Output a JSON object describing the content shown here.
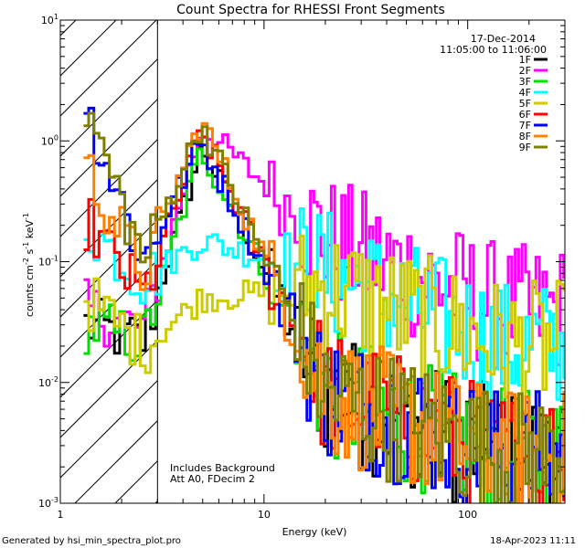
{
  "chart_data": {
    "type": "line",
    "title": "Count Spectra for RHESSI Front Segments",
    "xlabel": "Energy (keV)",
    "ylabel": "counts cm",
    "ylabel_sup1": "-2",
    "ylabel_mid": " s",
    "ylabel_sup2": "-1",
    "ylabel_end": " keV",
    "ylabel_sup3": "-1",
    "xscale": "log",
    "yscale": "log",
    "xlim": [
      1,
      300
    ],
    "ylim": [
      0.001,
      10
    ],
    "x_ticks": [
      {
        "value": 1,
        "label": "1"
      },
      {
        "value": 10,
        "label": "10"
      },
      {
        "value": 100,
        "label": "100"
      }
    ],
    "y_ticks": [
      {
        "value": 0.001,
        "base": "10",
        "exp": "-3"
      },
      {
        "value": 0.01,
        "base": "10",
        "exp": "-2"
      },
      {
        "value": 0.1,
        "base": "10",
        "exp": "-1"
      },
      {
        "value": 1,
        "base": "10",
        "exp": "0"
      },
      {
        "value": 10,
        "base": "10",
        "exp": "1"
      }
    ],
    "excluded_region": {
      "x_from": 1,
      "x_to": 3
    },
    "legend_position": "top-right",
    "date": "17-Dec-2014",
    "time_range": "11:05:00 to 11:06:00",
    "annotations": [
      "Includes Background",
      "Att A0, FDecim 2"
    ],
    "series": [
      {
        "name": "1F",
        "color": "#000000",
        "values": [
          0.03,
          0.022,
          0.9,
          0.008,
          0.0025
        ]
      },
      {
        "name": "2F",
        "color": "#ff00ff",
        "values": [
          0.04,
          0.028,
          1.3,
          0.15,
          0.04
        ]
      },
      {
        "name": "3F",
        "color": "#00e000",
        "values": [
          0.03,
          0.022,
          0.85,
          0.008,
          0.0025
        ]
      },
      {
        "name": "4F",
        "color": "#00ffff",
        "values": [
          0.2,
          0.07,
          0.15,
          0.08,
          0.02
        ]
      },
      {
        "name": "5F",
        "color": "#cccc00",
        "values": [
          0.05,
          0.02,
          0.05,
          0.06,
          0.02
        ]
      },
      {
        "name": "6F",
        "color": "#ff0000",
        "values": [
          0.22,
          0.05,
          1.2,
          0.008,
          0.0025
        ]
      },
      {
        "name": "7F",
        "color": "#0000ff",
        "values": [
          1.9,
          0.1,
          1.0,
          0.008,
          0.0025
        ]
      },
      {
        "name": "8F",
        "color": "#ff8000",
        "values": [
          0.6,
          0.08,
          1.5,
          0.008,
          0.0025
        ]
      },
      {
        "name": "9F",
        "color": "#808000",
        "values": [
          1.9,
          0.1,
          1.4,
          0.008,
          0.0025
        ]
      }
    ],
    "series_x": [
      1.3,
      2.5,
      4.8,
      20,
      150
    ]
  },
  "footer": {
    "left": "Generated by hsi_min_spectra_plot.pro",
    "right": "18-Apr-2023 11:11"
  }
}
